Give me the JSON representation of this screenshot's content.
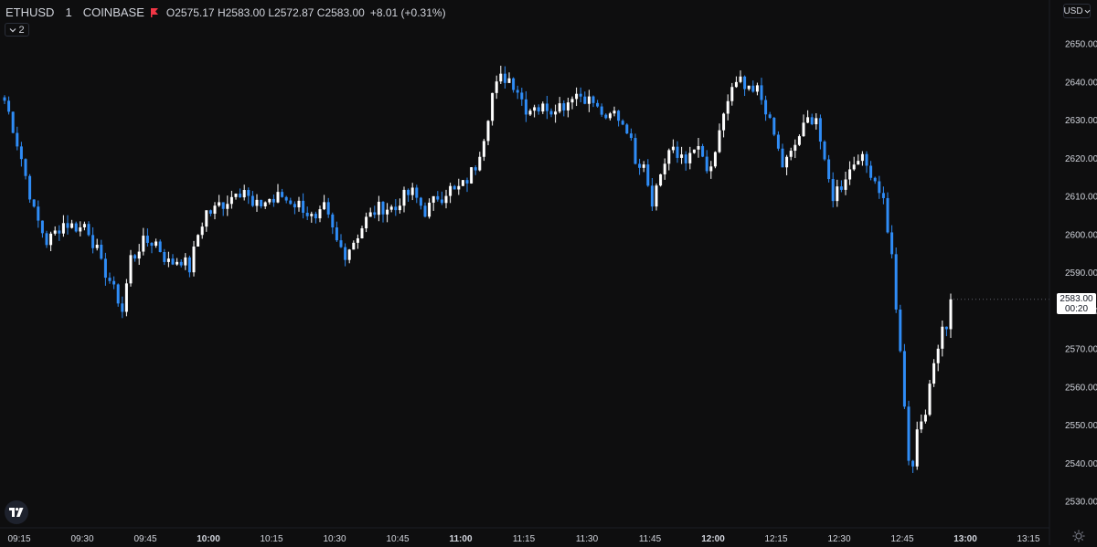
{
  "legend": {
    "symbol": "ETHUSD",
    "interval": "1",
    "exchange": "COINBASE",
    "open_label": "O",
    "open": "2575.17",
    "high_label": "H",
    "high": "2583.00",
    "low_label": "L",
    "low": "2572.87",
    "close_label": "C",
    "close": "2583.00",
    "change": "+8.01 (+0.31%)"
  },
  "collapse_count": "2",
  "currency": "USD",
  "price_tag": {
    "price": "2583.00",
    "countdown": "00:20"
  },
  "colors": {
    "background": "#0e0e0f",
    "up": "#ffffff",
    "down": "#2f8cf6",
    "wick": "#d1d4dc",
    "text": "#d1d4dc",
    "flag": "#f23645"
  },
  "icons": {
    "flag": "flag-icon",
    "chevron": "chevron-down-icon",
    "logo": "tradingview-logo-icon",
    "settings": "gear-icon"
  },
  "chart_data": {
    "type": "candlestick",
    "title": "",
    "xlabel": "",
    "ylabel": "",
    "ylim": [
      2527,
      2661
    ],
    "grid": false,
    "y_ticks": [
      "2530.00",
      "2540.00",
      "2550.00",
      "2560.00",
      "2570.00",
      "2580.00",
      "2590.00",
      "2600.00",
      "2610.00",
      "2620.00",
      "2630.00",
      "2640.00",
      "2650.00"
    ],
    "x_ticks": [
      {
        "label": "09:15",
        "t": 0,
        "bold": false
      },
      {
        "label": "09:30",
        "t": 15,
        "bold": false
      },
      {
        "label": "09:45",
        "t": 30,
        "bold": false
      },
      {
        "label": "10:00",
        "t": 45,
        "bold": true
      },
      {
        "label": "10:15",
        "t": 60,
        "bold": false
      },
      {
        "label": "10:30",
        "t": 75,
        "bold": false
      },
      {
        "label": "10:45",
        "t": 90,
        "bold": false
      },
      {
        "label": "11:00",
        "t": 105,
        "bold": true
      },
      {
        "label": "11:15",
        "t": 120,
        "bold": false
      },
      {
        "label": "11:30",
        "t": 135,
        "bold": false
      },
      {
        "label": "11:45",
        "t": 150,
        "bold": false
      },
      {
        "label": "12:00",
        "t": 165,
        "bold": true
      },
      {
        "label": "12:15",
        "t": 180,
        "bold": false
      },
      {
        "label": "12:30",
        "t": 195,
        "bold": false
      },
      {
        "label": "12:45",
        "t": 210,
        "bold": false
      },
      {
        "label": "13:00",
        "t": 225,
        "bold": true
      },
      {
        "label": "13:15",
        "t": 240,
        "bold": false
      }
    ],
    "anchors": [
      [
        0,
        2636
      ],
      [
        4,
        2620
      ],
      [
        7,
        2606
      ],
      [
        10,
        2598
      ],
      [
        14,
        2603
      ],
      [
        17,
        2602
      ],
      [
        20,
        2601
      ],
      [
        23,
        2592
      ],
      [
        26,
        2586
      ],
      [
        28,
        2580
      ],
      [
        30,
        2594
      ],
      [
        33,
        2598
      ],
      [
        36,
        2598
      ],
      [
        39,
        2592
      ],
      [
        42,
        2594
      ],
      [
        44,
        2591
      ],
      [
        46,
        2600
      ],
      [
        48,
        2606
      ],
      [
        51,
        2607
      ],
      [
        54,
        2610
      ],
      [
        57,
        2612
      ],
      [
        59,
        2607
      ],
      [
        61,
        2608
      ],
      [
        64,
        2610
      ],
      [
        67,
        2610
      ],
      [
        70,
        2608
      ],
      [
        72,
        2606
      ],
      [
        74,
        2603
      ],
      [
        76,
        2607
      ],
      [
        79,
        2598
      ],
      [
        81,
        2595
      ],
      [
        84,
        2600
      ],
      [
        86,
        2604
      ],
      [
        89,
        2607
      ],
      [
        92,
        2607
      ],
      [
        95,
        2610
      ],
      [
        97,
        2611
      ],
      [
        100,
        2606
      ],
      [
        103,
        2610
      ],
      [
        106,
        2612
      ],
      [
        108,
        2611
      ],
      [
        110,
        2615
      ],
      [
        112,
        2618
      ],
      [
        114,
        2626
      ],
      [
        116,
        2637
      ],
      [
        118,
        2641
      ],
      [
        120,
        2641
      ],
      [
        122,
        2638
      ],
      [
        124,
        2633
      ],
      [
        127,
        2633
      ],
      [
        130,
        2634
      ],
      [
        133,
        2634
      ],
      [
        136,
        2637
      ],
      [
        138,
        2636
      ],
      [
        141,
        2634
      ],
      [
        143,
        2630
      ],
      [
        145,
        2632
      ],
      [
        148,
        2628
      ],
      [
        150,
        2620
      ],
      [
        152,
        2618
      ],
      [
        154,
        2609
      ],
      [
        156,
        2616
      ],
      [
        158,
        2622
      ],
      [
        160,
        2620
      ],
      [
        163,
        2620
      ],
      [
        165,
        2622
      ],
      [
        167,
        2616
      ],
      [
        169,
        2620
      ],
      [
        171,
        2632
      ],
      [
        173,
        2638
      ],
      [
        175,
        2640
      ],
      [
        177,
        2636
      ],
      [
        179,
        2638
      ],
      [
        181,
        2633
      ],
      [
        183,
        2626
      ],
      [
        185,
        2618
      ],
      [
        187,
        2621
      ],
      [
        189,
        2626
      ],
      [
        191,
        2630
      ],
      [
        193,
        2631
      ],
      [
        195,
        2618
      ],
      [
        197,
        2610
      ],
      [
        199,
        2614
      ],
      [
        201,
        2617
      ],
      [
        203,
        2621
      ],
      [
        205,
        2618
      ],
      [
        207,
        2615
      ],
      [
        209,
        2609
      ],
      [
        211,
        2594
      ],
      [
        213,
        2568
      ],
      [
        215,
        2541
      ],
      [
        216,
        2538
      ],
      [
        217,
        2550
      ],
      [
        219,
        2553
      ],
      [
        221,
        2566
      ],
      [
        223,
        2577
      ],
      [
        224,
        2575.17
      ]
    ],
    "series_open": [
      2636,
      2627,
      2611
    ],
    "last_candle": {
      "o": 2575.17,
      "h": 2583.0,
      "l": 2572.87,
      "c": 2583.0
    }
  }
}
